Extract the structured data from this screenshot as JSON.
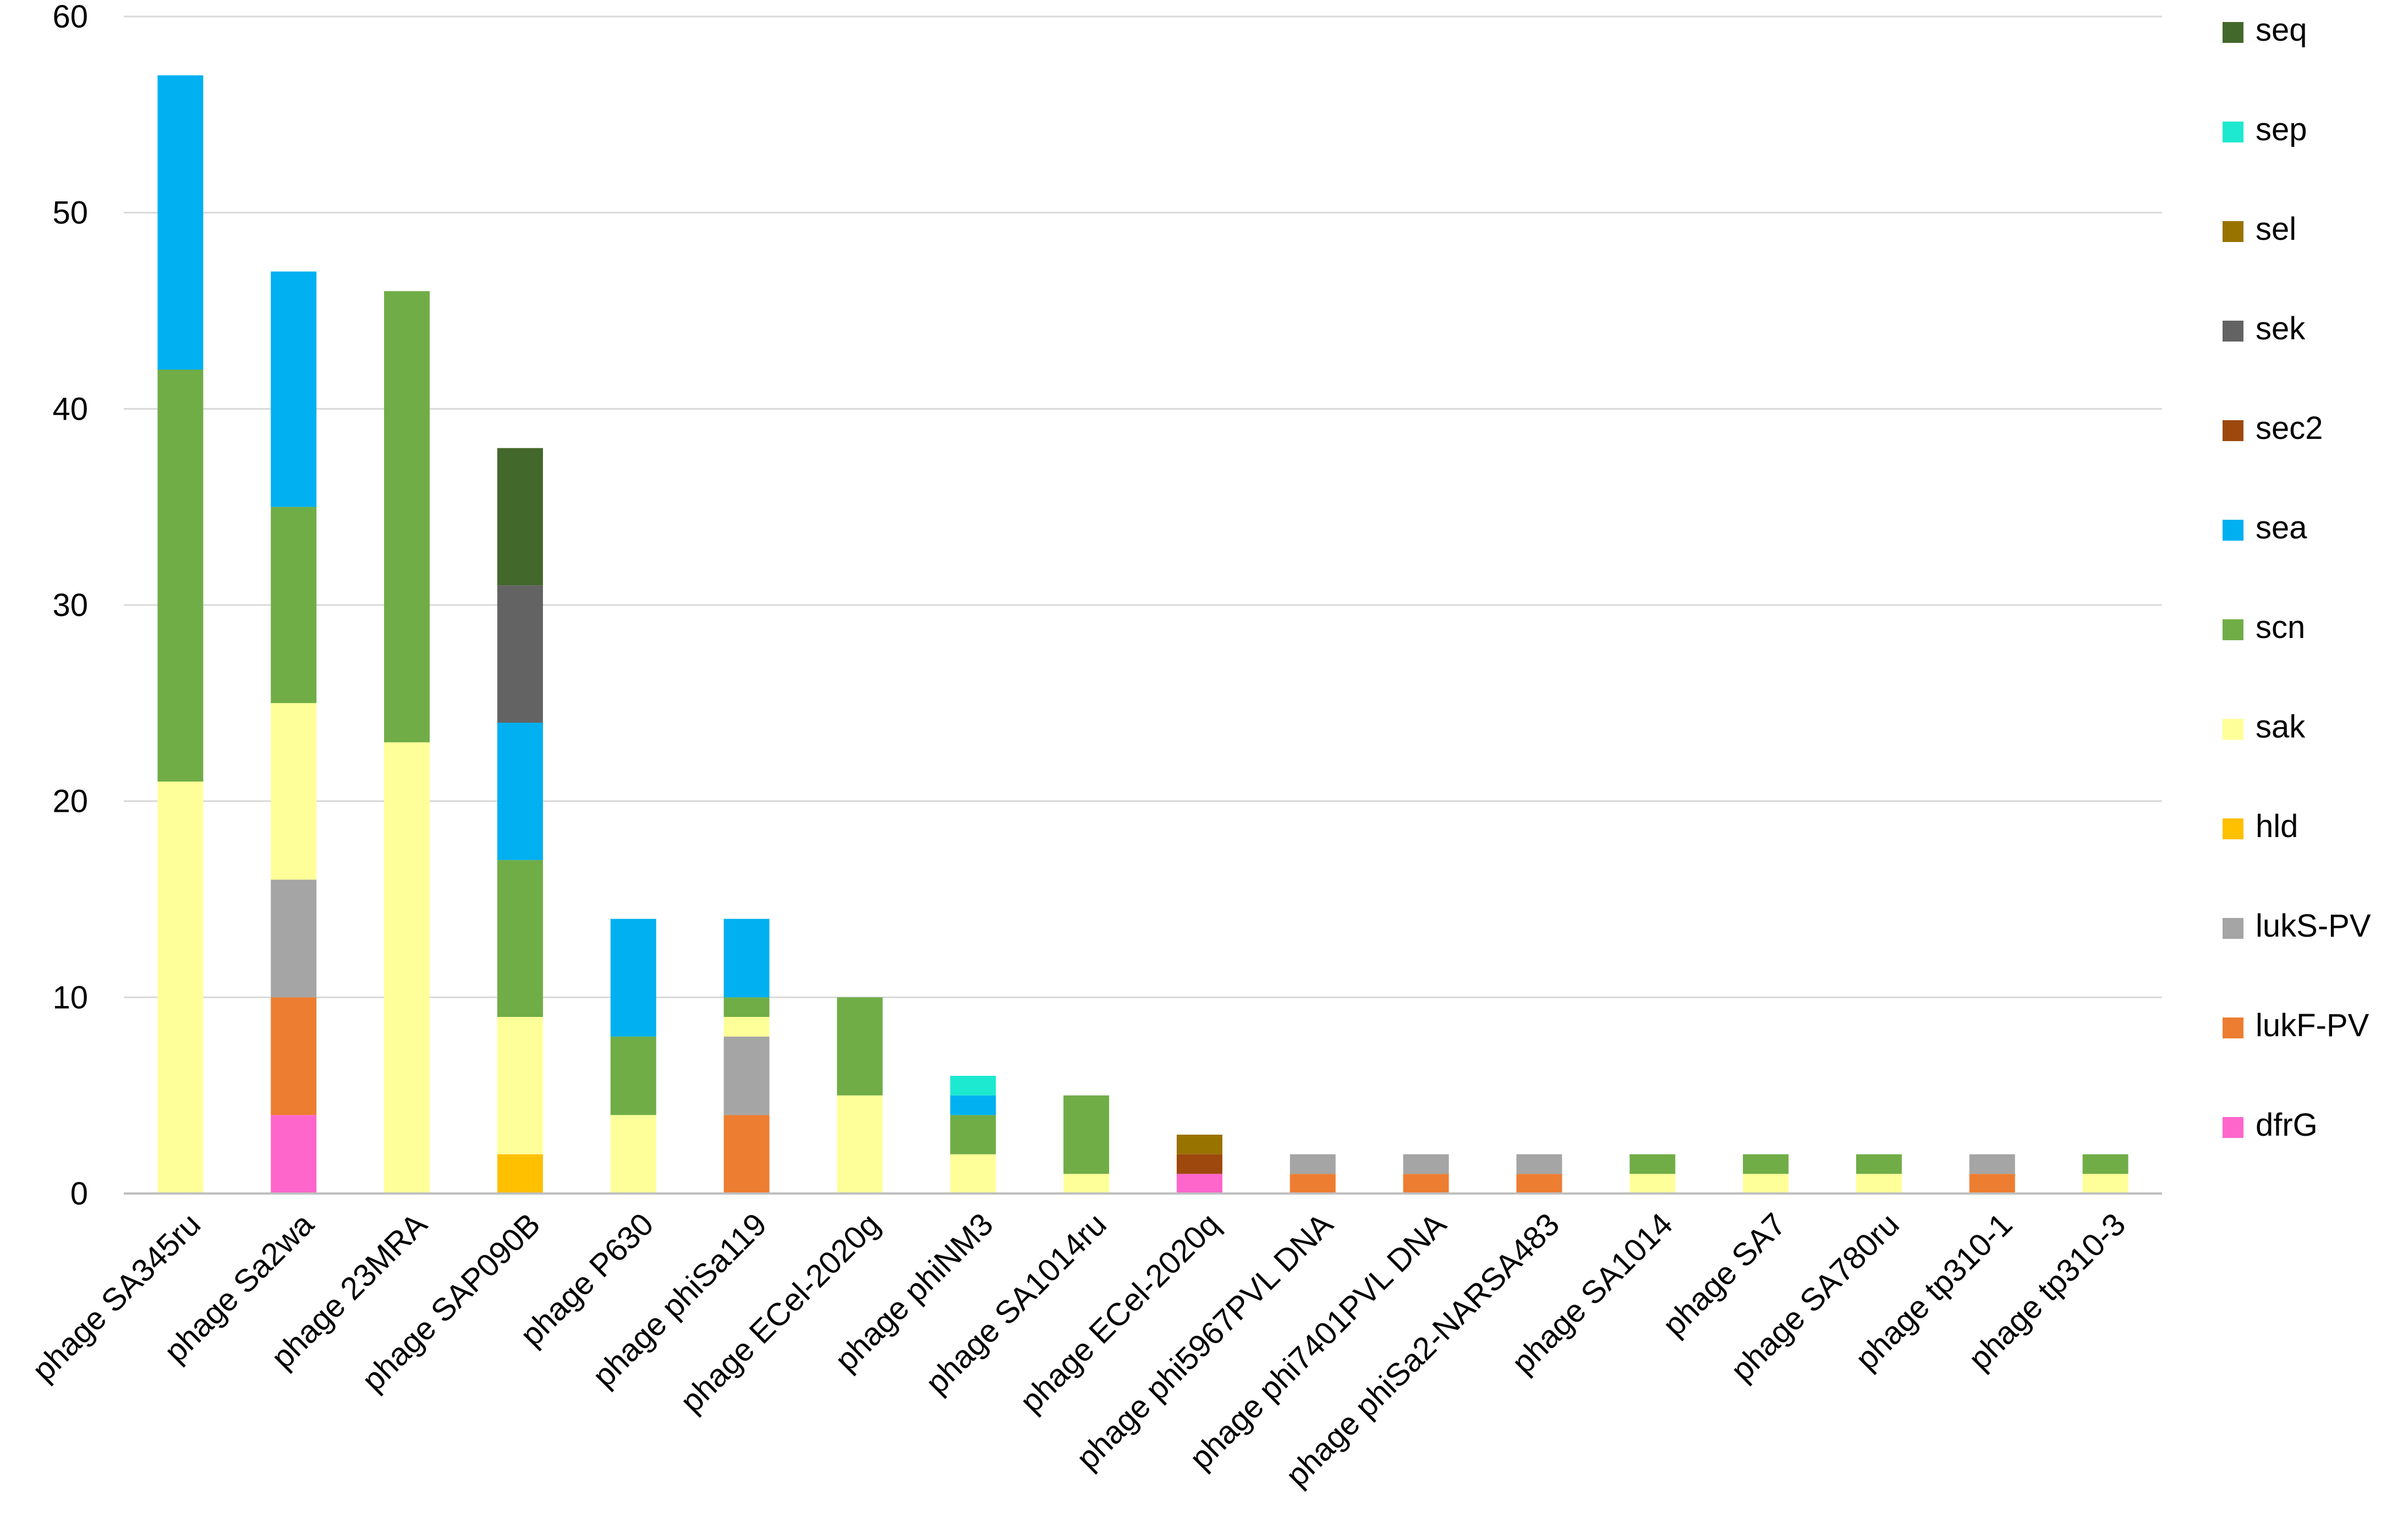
{
  "chart_data": {
    "type": "bar",
    "stacked": true,
    "title": "",
    "xlabel": "",
    "ylabel": "",
    "ylim": [
      0,
      60
    ],
    "yticks": [
      0,
      10,
      20,
      30,
      40,
      50,
      60
    ],
    "grid": true,
    "legend_position": "right",
    "categories": [
      "phage SA345ru",
      "phage Sa2wa",
      "phage 23MRA",
      "phage SAP090B",
      "phage P630",
      "phage phiSa119",
      "phage ECel-2020g",
      "phage phiNM3",
      "phage SA1014ru",
      "phage ECel-2020q",
      "phage phi5967PVL DNA",
      "phage phi7401PVL DNA",
      "phage phiSa2-NARSA483",
      "phage SA1014",
      "phage SA7",
      "phage SA780ru",
      "phage tp310-1",
      "phage tp310-3"
    ],
    "series": [
      {
        "name": "dfrG",
        "color": "#ff66cc",
        "values": [
          0,
          4,
          0,
          0,
          0,
          0,
          0,
          0,
          0,
          1,
          0,
          0,
          0,
          0,
          0,
          0,
          0,
          0
        ]
      },
      {
        "name": "lukF-PV",
        "color": "#ed7d31",
        "values": [
          0,
          6,
          0,
          0,
          0,
          4,
          0,
          0,
          0,
          0,
          1,
          1,
          1,
          0,
          0,
          0,
          1,
          0
        ]
      },
      {
        "name": "lukS-PV",
        "color": "#a5a5a5",
        "values": [
          0,
          6,
          0,
          0,
          0,
          4,
          0,
          0,
          0,
          0,
          1,
          1,
          1,
          0,
          0,
          0,
          1,
          0
        ]
      },
      {
        "name": "hld",
        "color": "#ffc000",
        "values": [
          0,
          0,
          0,
          2,
          0,
          0,
          0,
          0,
          0,
          0,
          0,
          0,
          0,
          0,
          0,
          0,
          0,
          0
        ]
      },
      {
        "name": "sak",
        "color": "#ffff99",
        "values": [
          21,
          9,
          23,
          7,
          4,
          1,
          5,
          2,
          1,
          0,
          0,
          0,
          0,
          1,
          1,
          1,
          0,
          1
        ]
      },
      {
        "name": "scn",
        "color": "#70ad47",
        "values": [
          21,
          10,
          23,
          8,
          4,
          1,
          5,
          2,
          4,
          0,
          0,
          0,
          0,
          1,
          1,
          1,
          0,
          1
        ]
      },
      {
        "name": "sea",
        "color": "#00b0f0",
        "values": [
          15,
          12,
          0,
          7,
          6,
          4,
          0,
          1,
          0,
          0,
          0,
          0,
          0,
          0,
          0,
          0,
          0,
          0
        ]
      },
      {
        "name": "sec2",
        "color": "#9e480e",
        "values": [
          0,
          0,
          0,
          0,
          0,
          0,
          0,
          0,
          0,
          1,
          0,
          0,
          0,
          0,
          0,
          0,
          0,
          0
        ]
      },
      {
        "name": "sek",
        "color": "#636363",
        "values": [
          0,
          0,
          0,
          7,
          0,
          0,
          0,
          0,
          0,
          0,
          0,
          0,
          0,
          0,
          0,
          0,
          0,
          0
        ]
      },
      {
        "name": "sel",
        "color": "#997300",
        "values": [
          0,
          0,
          0,
          0,
          0,
          0,
          0,
          0,
          0,
          1,
          0,
          0,
          0,
          0,
          0,
          0,
          0,
          0
        ]
      },
      {
        "name": "sep",
        "color": "#1de9d0",
        "values": [
          0,
          0,
          0,
          0,
          0,
          0,
          0,
          1,
          0,
          0,
          0,
          0,
          0,
          0,
          0,
          0,
          0,
          0
        ]
      },
      {
        "name": "seq",
        "color": "#43682b",
        "values": [
          0,
          0,
          0,
          7,
          0,
          0,
          0,
          0,
          0,
          0,
          0,
          0,
          0,
          0,
          0,
          0,
          0,
          0
        ]
      }
    ]
  }
}
